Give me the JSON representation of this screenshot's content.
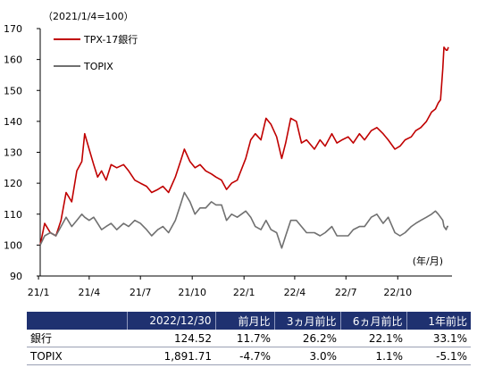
{
  "chart_data": {
    "type": "line",
    "unit_note": "（2021/1/4=100）",
    "x_unit": "(年/月)",
    "x_range": [
      "2021-01-04",
      "2022-12-30"
    ],
    "ylim": [
      90,
      170
    ],
    "y_ticks": [
      "90",
      "100",
      "110",
      "120",
      "130",
      "140",
      "150",
      "160",
      "170"
    ],
    "x_ticks": [
      {
        "label": "21/1",
        "date": "2021-01-01"
      },
      {
        "label": "21/4",
        "date": "2021-04-01"
      },
      {
        "label": "21/7",
        "date": "2021-07-01"
      },
      {
        "label": "21/10",
        "date": "2021-10-01"
      },
      {
        "label": "22/1",
        "date": "2022-01-01"
      },
      {
        "label": "22/4",
        "date": "2022-04-01"
      },
      {
        "label": "22/7",
        "date": "2022-07-01"
      },
      {
        "label": "22/10",
        "date": "2022-10-01"
      }
    ],
    "grid": false,
    "legend_position": "top-left",
    "series": [
      {
        "name": "TPX-17銀行",
        "color": "#c00000",
        "points": [
          [
            "2021-01-04",
            100
          ],
          [
            "2021-01-12",
            107
          ],
          [
            "2021-01-22",
            104
          ],
          [
            "2021-02-01",
            103
          ],
          [
            "2021-02-10",
            108
          ],
          [
            "2021-02-19",
            117
          ],
          [
            "2021-03-01",
            114
          ],
          [
            "2021-03-10",
            124
          ],
          [
            "2021-03-19",
            127
          ],
          [
            "2021-03-24",
            136
          ],
          [
            "2021-04-01",
            131
          ],
          [
            "2021-04-09",
            126
          ],
          [
            "2021-04-16",
            122
          ],
          [
            "2021-04-23",
            124
          ],
          [
            "2021-05-01",
            121
          ],
          [
            "2021-05-10",
            126
          ],
          [
            "2021-05-20",
            125
          ],
          [
            "2021-06-01",
            126
          ],
          [
            "2021-06-10",
            124
          ],
          [
            "2021-06-21",
            121
          ],
          [
            "2021-07-01",
            120
          ],
          [
            "2021-07-12",
            119
          ],
          [
            "2021-07-21",
            117
          ],
          [
            "2021-08-01",
            118
          ],
          [
            "2021-08-10",
            119
          ],
          [
            "2021-08-20",
            117
          ],
          [
            "2021-09-01",
            122
          ],
          [
            "2021-09-10",
            127
          ],
          [
            "2021-09-17",
            131
          ],
          [
            "2021-09-27",
            127
          ],
          [
            "2021-10-06",
            125
          ],
          [
            "2021-10-15",
            126
          ],
          [
            "2021-10-25",
            124
          ],
          [
            "2021-11-04",
            123
          ],
          [
            "2021-11-12",
            122
          ],
          [
            "2021-11-22",
            121
          ],
          [
            "2021-12-01",
            118
          ],
          [
            "2021-12-10",
            120
          ],
          [
            "2021-12-20",
            121
          ],
          [
            "2022-01-04",
            128
          ],
          [
            "2022-01-13",
            134
          ],
          [
            "2022-01-21",
            136
          ],
          [
            "2022-01-31",
            134
          ],
          [
            "2022-02-09",
            141
          ],
          [
            "2022-02-18",
            139
          ],
          [
            "2022-02-28",
            135
          ],
          [
            "2022-03-09",
            128
          ],
          [
            "2022-03-16",
            133
          ],
          [
            "2022-03-25",
            141
          ],
          [
            "2022-04-04",
            140
          ],
          [
            "2022-04-13",
            133
          ],
          [
            "2022-04-22",
            134
          ],
          [
            "2022-05-06",
            131
          ],
          [
            "2022-05-16",
            134
          ],
          [
            "2022-05-25",
            132
          ],
          [
            "2022-06-06",
            136
          ],
          [
            "2022-06-15",
            133
          ],
          [
            "2022-06-24",
            134
          ],
          [
            "2022-07-05",
            135
          ],
          [
            "2022-07-14",
            133
          ],
          [
            "2022-07-25",
            136
          ],
          [
            "2022-08-03",
            134
          ],
          [
            "2022-08-15",
            137
          ],
          [
            "2022-08-25",
            138
          ],
          [
            "2022-09-05",
            136
          ],
          [
            "2022-09-14",
            134
          ],
          [
            "2022-09-26",
            131
          ],
          [
            "2022-10-05",
            132
          ],
          [
            "2022-10-14",
            134
          ],
          [
            "2022-10-25",
            135
          ],
          [
            "2022-11-02",
            137
          ],
          [
            "2022-11-11",
            138
          ],
          [
            "2022-11-21",
            140
          ],
          [
            "2022-11-30",
            143
          ],
          [
            "2022-12-07",
            144
          ],
          [
            "2022-12-12",
            146
          ],
          [
            "2022-12-16",
            147
          ],
          [
            "2022-12-20",
            157
          ],
          [
            "2022-12-22",
            164
          ],
          [
            "2022-12-26",
            163
          ],
          [
            "2022-12-28",
            163
          ],
          [
            "2022-12-30",
            164
          ]
        ]
      },
      {
        "name": "TOPIX",
        "color": "#707070",
        "points": [
          [
            "2021-01-04",
            100
          ],
          [
            "2021-01-12",
            103
          ],
          [
            "2021-01-22",
            104
          ],
          [
            "2021-02-01",
            103
          ],
          [
            "2021-02-10",
            106
          ],
          [
            "2021-02-19",
            109
          ],
          [
            "2021-03-01",
            106
          ],
          [
            "2021-03-10",
            108
          ],
          [
            "2021-03-19",
            110
          ],
          [
            "2021-03-24",
            109
          ],
          [
            "2021-04-01",
            108
          ],
          [
            "2021-04-09",
            109
          ],
          [
            "2021-04-16",
            107
          ],
          [
            "2021-04-23",
            105
          ],
          [
            "2021-05-01",
            106
          ],
          [
            "2021-05-10",
            107
          ],
          [
            "2021-05-20",
            105
          ],
          [
            "2021-06-01",
            107
          ],
          [
            "2021-06-10",
            106
          ],
          [
            "2021-06-21",
            108
          ],
          [
            "2021-07-01",
            107
          ],
          [
            "2021-07-12",
            105
          ],
          [
            "2021-07-21",
            103
          ],
          [
            "2021-08-01",
            105
          ],
          [
            "2021-08-10",
            106
          ],
          [
            "2021-08-20",
            104
          ],
          [
            "2021-09-01",
            108
          ],
          [
            "2021-09-10",
            113
          ],
          [
            "2021-09-17",
            117
          ],
          [
            "2021-09-27",
            114
          ],
          [
            "2021-10-06",
            110
          ],
          [
            "2021-10-15",
            112
          ],
          [
            "2021-10-25",
            112
          ],
          [
            "2021-11-04",
            114
          ],
          [
            "2021-11-12",
            113
          ],
          [
            "2021-11-22",
            113
          ],
          [
            "2021-12-01",
            108
          ],
          [
            "2021-12-10",
            110
          ],
          [
            "2021-12-20",
            109
          ],
          [
            "2022-01-04",
            111
          ],
          [
            "2022-01-13",
            109
          ],
          [
            "2022-01-21",
            106
          ],
          [
            "2022-01-31",
            105
          ],
          [
            "2022-02-09",
            108
          ],
          [
            "2022-02-18",
            105
          ],
          [
            "2022-02-28",
            104
          ],
          [
            "2022-03-09",
            99
          ],
          [
            "2022-03-16",
            103
          ],
          [
            "2022-03-25",
            108
          ],
          [
            "2022-04-04",
            108
          ],
          [
            "2022-04-13",
            106
          ],
          [
            "2022-04-22",
            104
          ],
          [
            "2022-05-06",
            104
          ],
          [
            "2022-05-16",
            103
          ],
          [
            "2022-05-25",
            104
          ],
          [
            "2022-06-06",
            106
          ],
          [
            "2022-06-15",
            103
          ],
          [
            "2022-06-24",
            103
          ],
          [
            "2022-07-05",
            103
          ],
          [
            "2022-07-14",
            105
          ],
          [
            "2022-07-25",
            106
          ],
          [
            "2022-08-03",
            106
          ],
          [
            "2022-08-15",
            109
          ],
          [
            "2022-08-25",
            110
          ],
          [
            "2022-09-05",
            107
          ],
          [
            "2022-09-14",
            109
          ],
          [
            "2022-09-26",
            104
          ],
          [
            "2022-10-05",
            103
          ],
          [
            "2022-10-14",
            104
          ],
          [
            "2022-10-25",
            106
          ],
          [
            "2022-11-02",
            107
          ],
          [
            "2022-11-11",
            108
          ],
          [
            "2022-11-21",
            109
          ],
          [
            "2022-11-30",
            110
          ],
          [
            "2022-12-07",
            111
          ],
          [
            "2022-12-12",
            110
          ],
          [
            "2022-12-16",
            109
          ],
          [
            "2022-12-20",
            108
          ],
          [
            "2022-12-22",
            106
          ],
          [
            "2022-12-26",
            105
          ],
          [
            "2022-12-28",
            106
          ],
          [
            "2022-12-30",
            106
          ]
        ]
      }
    ]
  },
  "table": {
    "header_color": "#1f3170",
    "columns": [
      "",
      "2022/12/30",
      "前月比",
      "3ヵ月前比",
      "6ヵ月前比",
      "1年前比"
    ],
    "rows": [
      [
        "銀行",
        "124.52",
        "11.7%",
        "26.2%",
        "22.1%",
        "33.1%"
      ],
      [
        "TOPIX",
        "1,891.71",
        "-4.7%",
        "3.0%",
        "1.1%",
        "-5.1%"
      ]
    ]
  }
}
